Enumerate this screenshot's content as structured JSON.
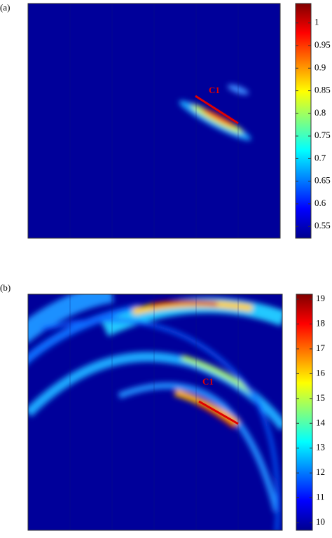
{
  "chart_data": [
    {
      "type": "heatmap",
      "panel_label": "(a)",
      "annotation": "C1",
      "clim": [
        0.524,
        1.043
      ],
      "cticks": [
        0.55,
        0.6,
        0.65,
        0.7,
        0.75,
        0.8,
        0.85,
        0.9,
        0.95,
        1
      ]
    },
    {
      "type": "heatmap",
      "panel_label": "(b)",
      "annotation": "C1",
      "clim": [
        9.69,
        19.2
      ],
      "cticks": [
        10,
        11,
        12,
        13,
        14,
        15,
        16,
        17,
        18,
        19
      ]
    }
  ]
}
